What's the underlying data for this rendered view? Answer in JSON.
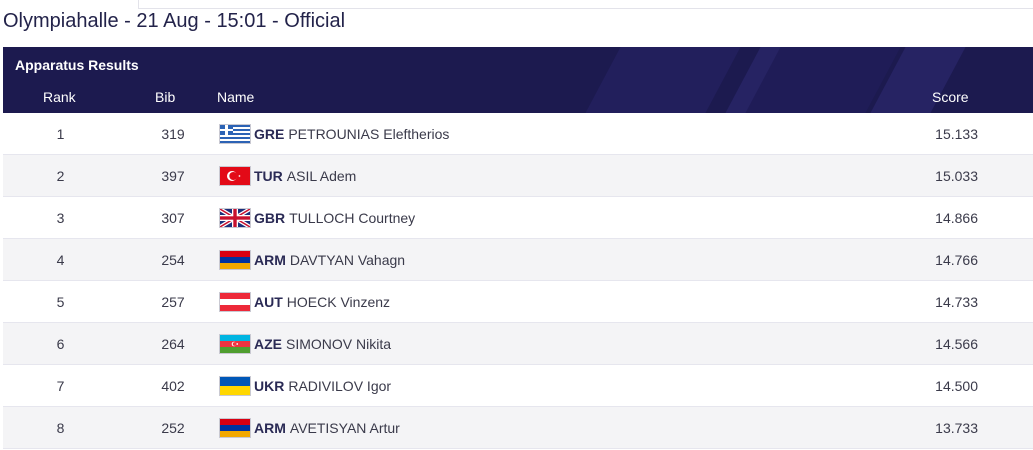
{
  "event_title": "Olympiahalle - 21 Aug - 15:01 - Official",
  "panel": {
    "title": "Apparatus Results",
    "columns": {
      "rank": "Rank",
      "bib": "Bib",
      "name": "Name",
      "score": "Score"
    }
  },
  "results": [
    {
      "rank": "1",
      "bib": "319",
      "noc": "GRE",
      "athlete": "PETROUNIAS Eleftherios",
      "score": "15.133",
      "flag_icon": "greece-flag-icon"
    },
    {
      "rank": "2",
      "bib": "397",
      "noc": "TUR",
      "athlete": "ASIL Adem",
      "score": "15.033",
      "flag_icon": "turkey-flag-icon"
    },
    {
      "rank": "3",
      "bib": "307",
      "noc": "GBR",
      "athlete": "TULLOCH Courtney",
      "score": "14.866",
      "flag_icon": "uk-flag-icon"
    },
    {
      "rank": "4",
      "bib": "254",
      "noc": "ARM",
      "athlete": "DAVTYAN Vahagn",
      "score": "14.766",
      "flag_icon": "armenia-flag-icon"
    },
    {
      "rank": "5",
      "bib": "257",
      "noc": "AUT",
      "athlete": "HOECK Vinzenz",
      "score": "14.733",
      "flag_icon": "austria-flag-icon"
    },
    {
      "rank": "6",
      "bib": "264",
      "noc": "AZE",
      "athlete": "SIMONOV Nikita",
      "score": "14.566",
      "flag_icon": "azerbaijan-flag-icon"
    },
    {
      "rank": "7",
      "bib": "402",
      "noc": "UKR",
      "athlete": "RADIVILOV Igor",
      "score": "14.500",
      "flag_icon": "ukraine-flag-icon"
    },
    {
      "rank": "8",
      "bib": "252",
      "noc": "ARM",
      "athlete": "AVETISYAN Artur",
      "score": "13.733",
      "flag_icon": "armenia-flag-icon"
    }
  ],
  "colors": {
    "header_bg": "#1c1a4f",
    "row_alt": "#f4f4f6",
    "title": "#23234a"
  }
}
